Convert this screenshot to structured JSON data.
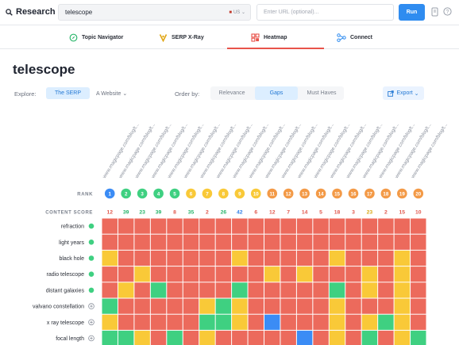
{
  "topbar": {
    "brand": "Research",
    "keyword": "telescope",
    "locale": "US",
    "url_placeholder": "Enter URL (optional)...",
    "run_label": "Run"
  },
  "tabs": [
    {
      "label": "Topic Navigator",
      "icon": "topic-navigator-icon"
    },
    {
      "label": "SERP X-Ray",
      "icon": "serp-xray-icon"
    },
    {
      "label": "Heatmap",
      "icon": "heatmap-icon",
      "active": true
    },
    {
      "label": "Connect",
      "icon": "connect-icon"
    }
  ],
  "page_title": "telescope",
  "explore": {
    "label": "Explore:",
    "options": [
      "The SERP",
      "A Website"
    ],
    "selected": "The SERP"
  },
  "order_by": {
    "label": "Order by:",
    "options": [
      "Relevance",
      "Gaps",
      "Must Haves"
    ],
    "selected": "Gaps"
  },
  "export_label": "Export",
  "colors": {
    "red": "#ec6a5c",
    "yellow": "#f9c938",
    "green": "#3fd081",
    "blue": "#3b8cf5",
    "accent": "#2f8cf0"
  },
  "heatmap": {
    "url_label": "www.magicpage.com/blog/t...",
    "rank_label": "RANK",
    "score_label": "CONTENT SCORE",
    "ranks": [
      "1",
      "2",
      "3",
      "4",
      "5",
      "6",
      "7",
      "8",
      "9",
      "10",
      "11",
      "12",
      "13",
      "14",
      "15",
      "16",
      "17",
      "18",
      "19",
      "20"
    ],
    "rank_colors": [
      "blue",
      "green",
      "green",
      "green",
      "green",
      "yellow",
      "yellow",
      "yellow",
      "yellow",
      "yellow",
      "orange",
      "orange",
      "orange",
      "orange",
      "orange",
      "orange",
      "orange",
      "orange",
      "orange",
      "orange"
    ],
    "scores": [
      "12",
      "39",
      "23",
      "39",
      "8",
      "35",
      "2",
      "26",
      "42",
      "6",
      "12",
      "7",
      "14",
      "5",
      "18",
      "3",
      "23",
      "2",
      "15",
      "10"
    ],
    "score_colors": [
      "red",
      "green",
      "green",
      "green",
      "red",
      "green",
      "red",
      "green",
      "blue",
      "red",
      "red",
      "red",
      "red",
      "red",
      "red",
      "red",
      "yellow",
      "red",
      "red",
      "red"
    ],
    "rows": [
      {
        "label": "refraction",
        "status": "check",
        "cells": "RRRRRRRRRRRRRRRRRRRR"
      },
      {
        "label": "light years",
        "status": "check",
        "cells": "RRRRRRRRRRRRRRRRRRRR"
      },
      {
        "label": "black hole",
        "status": "check",
        "cells": "YRRRRRRRYRRRRRYRRRYR"
      },
      {
        "label": "radio telescope",
        "status": "check",
        "cells": "RRYRRRRRRRYRYRRRYRYR"
      },
      {
        "label": "distant galaxies",
        "status": "check",
        "cells": "RYRGRRRRGRRRRRGRYRYR"
      },
      {
        "label": "valvano constellation",
        "status": "plus",
        "cells": "GRRRRRYGYRRRRRYRRRYR"
      },
      {
        "label": "x ray telescope",
        "status": "plus",
        "cells": "YRRRRRGGYRBRRRYRYGYR"
      },
      {
        "label": "focal length",
        "status": "plus",
        "cells": "GGYRGRYRRRRRBRYRGRYG"
      }
    ]
  }
}
